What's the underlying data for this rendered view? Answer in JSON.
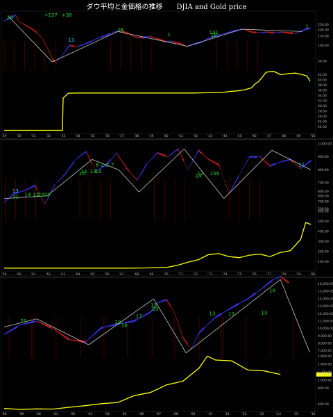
{
  "title": "ダウ平均と金価格の推移　　DJIA and Gold price",
  "colors": {
    "background": "#000000",
    "panel_border": "#333333",
    "gold_line": "#ffff00",
    "trend_line": "#c8c8c8",
    "bar_blue": "#3a3aff",
    "bar_red": "#e02020",
    "annotation_green": "#22dd22",
    "annotation_cyan": "#33bbff",
    "separator": "#cc0000",
    "last_price_box": "#ffff00"
  },
  "chart_data": [
    {
      "type": "line",
      "panel": "1929-1950",
      "x_ticks": [
        "'29",
        "'30",
        "'31",
        "'32",
        "'33",
        "'34",
        "'35",
        "'36",
        "'37",
        "'38",
        "'39",
        "'40",
        "'41",
        "'42",
        "'43",
        "'44",
        "'45",
        "'46",
        "'47",
        "'48",
        "'49",
        "'50"
      ],
      "upper_y_ticks": [
        "250.00",
        "200.00",
        "150.00",
        "100.00",
        "50.00"
      ],
      "lower_y_ticks": [
        "42.00",
        "40.00",
        "38.00",
        "36.00",
        "34.00",
        "32.00",
        "30.00",
        "28.00",
        "26.00",
        "24.00",
        "22.00"
      ],
      "annotations": [
        {
          "text": "+157",
          "color": "green",
          "x": 3.2,
          "y": 360
        },
        {
          "text": "+38",
          "color": "green",
          "x": 4.3,
          "y": 360
        },
        {
          "text": "28",
          "color": "green",
          "x": 0.4,
          "y": 320
        },
        {
          "text": "26",
          "color": "green",
          "x": 8.0,
          "y": 183
        },
        {
          "text": "13",
          "color": "cyan",
          "x": 4.6,
          "y": 118
        },
        {
          "text": "1",
          "color": "green",
          "x": 11.3,
          "y": 150
        },
        {
          "text": "131",
          "color": "green",
          "x": 14.4,
          "y": 165
        },
        {
          "text": "18",
          "color": "green",
          "x": 14.4,
          "y": 147
        },
        {
          "text": "1",
          "color": "green",
          "x": 20.8,
          "y": 215
        }
      ],
      "series": [
        {
          "kind": "price_bars",
          "values_x": [
            0,
            0.5,
            0.8,
            1.0,
            1.5,
            2.0,
            2.5,
            2.9,
            3.3,
            3.6,
            4.0,
            4.5,
            5.0,
            5.5,
            6.0,
            6.5,
            7.0,
            7.5,
            8.0,
            8.5,
            9.0,
            9.5,
            10.0,
            10.5,
            11.0,
            11.5,
            12.0,
            12.5,
            13.0,
            13.5,
            14.0,
            14.5,
            15.0,
            15.5,
            16.0,
            16.5,
            17.0,
            17.5,
            18.0,
            18.5,
            19.0,
            19.5,
            20.0,
            20.5,
            21.0
          ],
          "values_y": [
            300,
            345,
            380,
            290,
            240,
            200,
            150,
            95,
            55,
            45,
            65,
            100,
            95,
            105,
            120,
            140,
            155,
            180,
            190,
            170,
            145,
            140,
            150,
            135,
            120,
            120,
            110,
            95,
            105,
            115,
            135,
            150,
            165,
            180,
            195,
            205,
            180,
            175,
            180,
            175,
            180,
            175,
            170,
            195,
            215
          ]
        },
        {
          "name": "Gold",
          "kind": "gold_line",
          "x": [
            0,
            1,
            2,
            3,
            4,
            4.05,
            4.4,
            5,
            6,
            7,
            8,
            9,
            10,
            11,
            12,
            13,
            14,
            15,
            15.5,
            16,
            16.5,
            17,
            17.2,
            17.5,
            18,
            18.5,
            19,
            19.5,
            20,
            20.5,
            20.8,
            21.0
          ],
          "y": [
            20.67,
            20.67,
            20.67,
            20.67,
            20.67,
            33.0,
            34.9,
            35.0,
            35.0,
            35.0,
            35.0,
            35.0,
            35.0,
            35.0,
            35.0,
            35.0,
            35.1,
            35.2,
            35.6,
            35.8,
            36.2,
            37.0,
            38.3,
            39.5,
            43.0,
            43.3,
            42.0,
            42.4,
            42.6,
            42.0,
            41.5,
            39.5
          ]
        }
      ],
      "trend_lines": [
        [
          [
            0.3,
            360
          ],
          [
            3.3,
            48
          ]
        ],
        [
          [
            3.3,
            48
          ],
          [
            7.8,
            185
          ]
        ],
        [
          [
            7.8,
            185
          ],
          [
            12.6,
            96
          ]
        ],
        [
          [
            12.6,
            96
          ],
          [
            16.3,
            205
          ]
        ],
        [
          [
            16.3,
            205
          ],
          [
            20.5,
            185
          ]
        ]
      ]
    },
    {
      "type": "line",
      "panel": "1950-1980",
      "x_ticks": [
        "'59",
        "'60",
        "'61",
        "'62",
        "'63",
        "'64",
        "'65",
        "'66",
        "'67",
        "'68",
        "'69",
        "'70",
        "'71",
        "'72",
        "'73",
        "'74",
        "'75",
        "'76",
        "'77",
        "'78",
        "'79",
        "'80"
      ],
      "upper_y_ticks": [
        "1,000.00",
        "900.00",
        "800.00",
        "700.00",
        "600.00",
        "500.00"
      ],
      "lower_y_ticks": [
        "800.00",
        "700.00",
        "600.00",
        "500.00",
        "400.00",
        "300.00",
        "200.00",
        "100.00"
      ],
      "annotations": [
        {
          "text": "13",
          "color": "cyan",
          "x": 1.1,
          "y": 625
        },
        {
          "text": "21",
          "color": "green",
          "x": 1.1,
          "y": 580
        },
        {
          "text": "14",
          "color": "green",
          "x": 2.3,
          "y": 598
        },
        {
          "text": "13",
          "color": "green",
          "x": 3.1,
          "y": 598
        },
        {
          "text": "23",
          "color": "green",
          "x": 3.6,
          "y": 598
        },
        {
          "text": "23",
          "color": "green",
          "x": 4.2,
          "y": 598
        },
        {
          "text": "13",
          "color": "green",
          "x": 7.8,
          "y": 775
        },
        {
          "text": "13",
          "color": "green",
          "x": 8.7,
          "y": 775
        },
        {
          "text": "13",
          "color": "green",
          "x": 9.2,
          "y": 775
        },
        {
          "text": "15",
          "color": "green",
          "x": 7.6,
          "y": 760
        },
        {
          "text": "6",
          "color": "green",
          "x": 9.1,
          "y": 826
        },
        {
          "text": "2",
          "color": "green",
          "x": 9.6,
          "y": 826
        },
        {
          "text": "2",
          "color": "green",
          "x": 10.1,
          "y": 826
        },
        {
          "text": "7",
          "color": "green",
          "x": 10.6,
          "y": 826
        },
        {
          "text": "12",
          "color": "green",
          "x": 19.2,
          "y": 760
        },
        {
          "text": "14",
          "color": "green",
          "x": 19.0,
          "y": 740
        },
        {
          "text": "156",
          "color": "green",
          "x": 20.6,
          "y": 760
        },
        {
          "text": "11",
          "color": "cyan",
          "x": 29.1,
          "y": 825
        }
      ],
      "series": [
        {
          "kind": "price_bars",
          "values_x": [
            0,
            1,
            2,
            3,
            4,
            5,
            6,
            7,
            8,
            9,
            10,
            11,
            12,
            13,
            14,
            15,
            16,
            17,
            18,
            19,
            20,
            21,
            22,
            23,
            24,
            25,
            26,
            27,
            28,
            29,
            30
          ],
          "values_y": [
            550,
            620,
            640,
            680,
            540,
            690,
            770,
            880,
            940,
            790,
            840,
            930,
            810,
            720,
            850,
            930,
            900,
            960,
            800,
            950,
            880,
            840,
            620,
            760,
            900,
            900,
            830,
            860,
            880,
            810,
            870
          ]
        },
        {
          "name": "Gold",
          "kind": "gold_line",
          "x": [
            0,
            2,
            4,
            6,
            8,
            10,
            12,
            14,
            15,
            16,
            17,
            18,
            19,
            20,
            21,
            22,
            23,
            24,
            25,
            26,
            27,
            28,
            29,
            29.5,
            30
          ],
          "y": [
            35,
            35,
            35,
            35,
            35,
            35,
            35,
            37,
            41,
            44,
            65,
            95,
            120,
            170,
            180,
            150,
            140,
            165,
            175,
            150,
            190,
            210,
            320,
            490,
            470
          ]
        }
      ],
      "trend_lines": [
        [
          [
            0,
            580
          ],
          [
            4.2,
            600
          ]
        ],
        [
          [
            4.2,
            600
          ],
          [
            8.6,
            880
          ]
        ],
        [
          [
            8.6,
            880
          ],
          [
            11.2,
            800
          ]
        ],
        [
          [
            11.2,
            800
          ],
          [
            13.2,
            630
          ]
        ],
        [
          [
            13.2,
            630
          ],
          [
            17.6,
            960
          ]
        ],
        [
          [
            17.6,
            960
          ],
          [
            21.5,
            580
          ]
        ],
        [
          [
            21.5,
            580
          ],
          [
            26.2,
            950
          ]
        ],
        [
          [
            26.2,
            950
          ],
          [
            30.0,
            800
          ]
        ]
      ]
    },
    {
      "type": "line",
      "panel": "1995-2016",
      "x_ticks": [
        "'98",
        "'99",
        "'00",
        "'01",
        "'02",
        "'03",
        "'04",
        "'05",
        "'06",
        "'07",
        "'08",
        "'09",
        "'10",
        "'11",
        "'12",
        "'13",
        "'14",
        "'15",
        "'16"
      ],
      "upper_y_ticks": [
        "16,000.00",
        "15,000.00",
        "14,000.00",
        "13,000.00",
        "12,000.00",
        "11,000.00",
        "10,000.00",
        "9,000.00",
        "8,000.00",
        "7,000.00"
      ],
      "lower_y_ticks": [
        "1,600.00",
        "1,400.00",
        "1,200.00",
        "1,000.00",
        "800.00",
        "400.00"
      ],
      "last_price": "1,140.00",
      "annotations": [
        {
          "text": "20",
          "color": "green",
          "x": 1.2,
          "y": 10800
        },
        {
          "text": "19",
          "color": "green",
          "x": 7.0,
          "y": 10600
        },
        {
          "text": "16",
          "color": "green",
          "x": 7.4,
          "y": 10200
        },
        {
          "text": "17",
          "color": "green",
          "x": 8.3,
          "y": 11400
        },
        {
          "text": "13",
          "color": "green",
          "x": 9.2,
          "y": 12900
        },
        {
          "text": "29",
          "color": "green",
          "x": 9.3,
          "y": 12400
        },
        {
          "text": "13",
          "color": "green",
          "x": 12.8,
          "y": 11800
        },
        {
          "text": "17",
          "color": "green",
          "x": 14.0,
          "y": 11700
        },
        {
          "text": "13",
          "color": "green",
          "x": 16.0,
          "y": 11900
        },
        {
          "text": "18",
          "color": "green",
          "x": 16.5,
          "y": 14900
        }
      ],
      "series": [
        {
          "kind": "price_bars",
          "values_x": [
            0,
            1,
            2,
            3,
            4,
            5,
            6,
            7,
            8,
            9,
            9.5,
            10,
            10.5,
            11,
            11.5,
            12,
            13,
            14,
            15,
            16,
            16.5,
            17,
            17.5
          ],
          "values_y": [
            9200,
            10500,
            11000,
            10000,
            8500,
            8200,
            10100,
            10600,
            11000,
            12200,
            13500,
            13900,
            12000,
            8800,
            7200,
            9400,
            11500,
            12800,
            14000,
            15600,
            16500,
            17000,
            16200
          ]
        },
        {
          "name": "Gold",
          "kind": "gold_line",
          "x": [
            0,
            1,
            2,
            3,
            4,
            5,
            6,
            7,
            8,
            9,
            10,
            11,
            12,
            12.5,
            13,
            14,
            15,
            16,
            17
          ],
          "y": [
            290,
            265,
            280,
            275,
            320,
            360,
            410,
            440,
            610,
            690,
            880,
            970,
            1300,
            1600,
            1500,
            1480,
            1250,
            1230,
            1140
          ]
        }
      ],
      "trend_lines": [
        [
          [
            0,
            10200
          ],
          [
            2.0,
            11300
          ]
        ],
        [
          [
            2.0,
            11300
          ],
          [
            5.2,
            7800
          ]
        ],
        [
          [
            5.2,
            7800
          ],
          [
            9.2,
            14000
          ]
        ],
        [
          [
            9.2,
            14000
          ],
          [
            11.2,
            6700
          ]
        ],
        [
          [
            11.2,
            6700
          ],
          [
            17.0,
            16600
          ]
        ],
        [
          [
            17.0,
            16600
          ],
          [
            18.8,
            6800
          ]
        ]
      ]
    }
  ]
}
